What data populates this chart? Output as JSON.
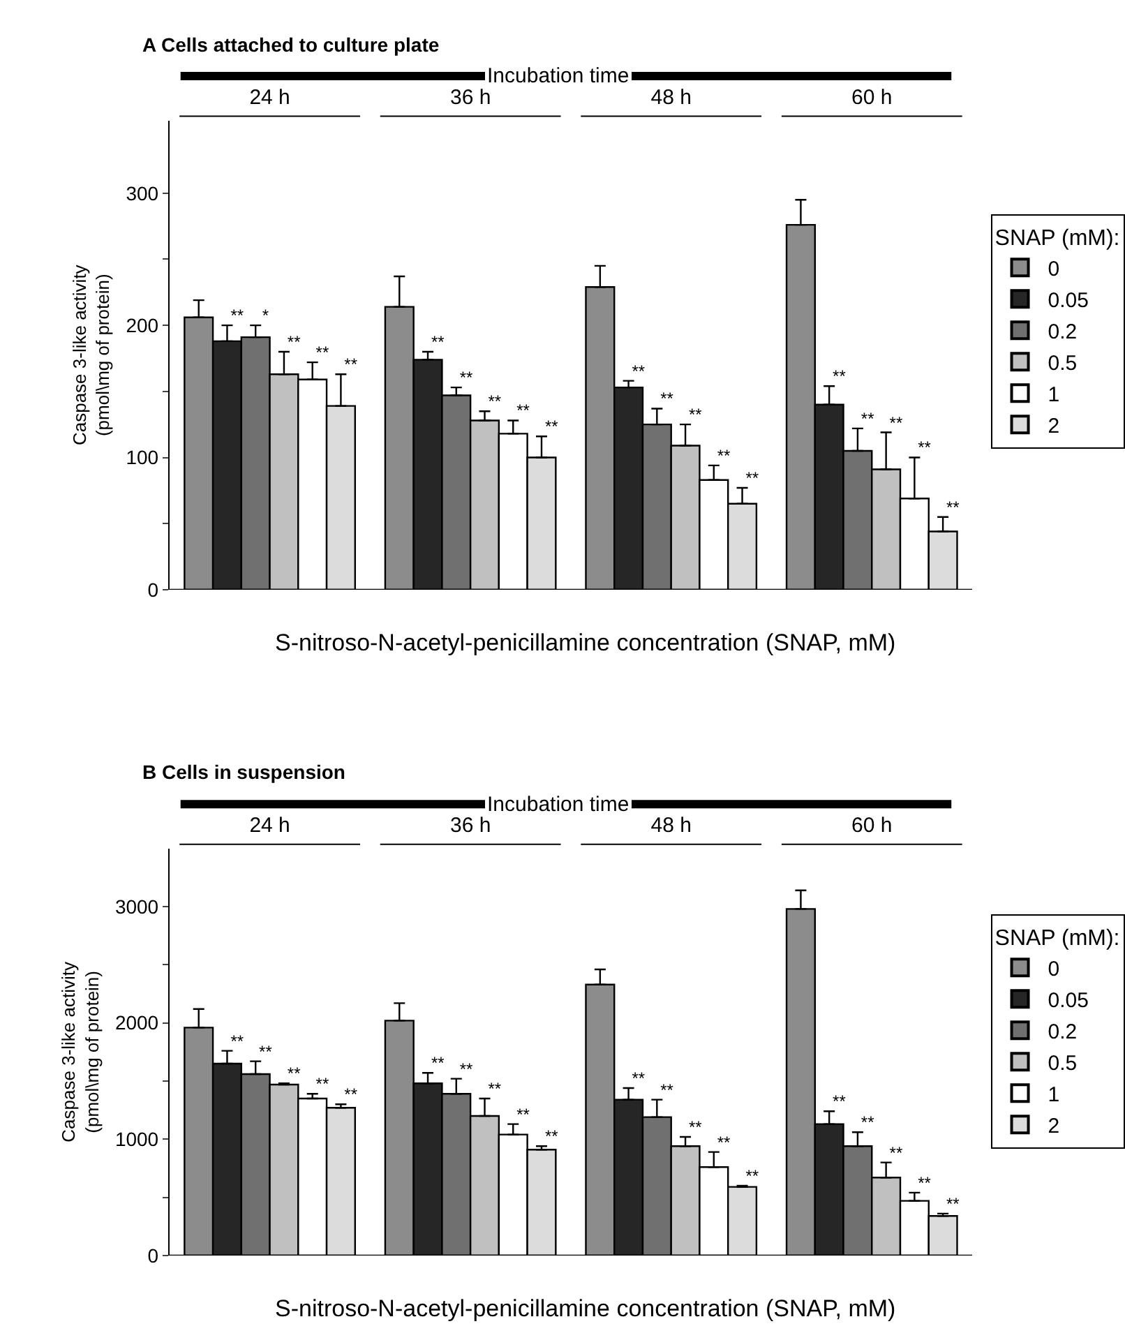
{
  "chart_data": [
    {
      "type": "bar",
      "title": "A Cells attached to culture plate",
      "xlabel": "S-nitroso-N-acetyl-penicillamine concentration (SNAP, mM)",
      "ylabel": "Caspase 3-like activity\n(pmol\\mg of protein)",
      "legend_title": "SNAP (mM):",
      "legend": "right",
      "annotations": [
        "Incubation time"
      ],
      "categories": [
        "24 h",
        "36 h",
        "48 h",
        "60 h"
      ],
      "ylim": [
        0,
        355
      ],
      "yticks": [
        0,
        {
          "value": 50,
          "label": null
        },
        100,
        {
          "value": 150,
          "label": null
        },
        200,
        {
          "value": 250,
          "label": null
        },
        300
      ],
      "series": [
        {
          "name": "0",
          "color": "#8c8c8c",
          "values": [
            206,
            214,
            229,
            276
          ],
          "errors": [
            [
              206,
              219
            ],
            [
              214,
              237
            ],
            [
              229,
              245
            ],
            [
              276,
              295
            ]
          ]
        },
        {
          "name": "0.05",
          "color": "#262626",
          "values": [
            188,
            174,
            153,
            140
          ],
          "errors": [
            [
              188,
              200
            ],
            [
              174,
              180
            ],
            [
              153,
              158
            ],
            [
              140,
              154
            ]
          ],
          "value_labels": [
            "**",
            "**",
            "**",
            "**"
          ]
        },
        {
          "name": "0.2",
          "color": "#707070",
          "values": [
            191,
            147,
            125,
            105
          ],
          "errors": [
            [
              191,
              200
            ],
            [
              147,
              153
            ],
            [
              125,
              137
            ],
            [
              105,
              122
            ]
          ],
          "value_labels": [
            "*",
            "**",
            "**",
            "**"
          ]
        },
        {
          "name": "0.5",
          "color": "#c0c0c0",
          "values": [
            163,
            128,
            109,
            91
          ],
          "errors": [
            [
              163,
              180
            ],
            [
              128,
              135
            ],
            [
              109,
              125
            ],
            [
              91,
              119
            ]
          ],
          "value_labels": [
            "**",
            "**",
            "**",
            "**"
          ]
        },
        {
          "name": "1",
          "color": "#ffffff",
          "values": [
            159,
            118,
            83,
            69
          ],
          "errors": [
            [
              159,
              172
            ],
            [
              118,
              128
            ],
            [
              83,
              94
            ],
            [
              69,
              100
            ]
          ],
          "value_labels": [
            "**",
            "**",
            "**",
            "**"
          ]
        },
        {
          "name": "2",
          "color": "#dcdcdc",
          "values": [
            139,
            100,
            65,
            44
          ],
          "errors": [
            [
              139,
              163
            ],
            [
              100,
              116
            ],
            [
              65,
              77
            ],
            [
              44,
              55
            ]
          ],
          "value_labels": [
            "**",
            "**",
            "**",
            "**"
          ]
        }
      ]
    },
    {
      "type": "bar",
      "title": "B Cells in suspension",
      "xlabel": "S-nitroso-N-acetyl-penicillamine concentration (SNAP, mM)",
      "ylabel": "Caspase 3-like activity\n(pmol\\mg of protein)",
      "legend_title": "SNAP (mM):",
      "legend": "right",
      "annotations": [
        "Incubation time"
      ],
      "categories": [
        "24 h",
        "36 h",
        "48 h",
        "60 h"
      ],
      "ylim": [
        0,
        3500
      ],
      "yticks": [
        0,
        {
          "value": 500,
          "label": null
        },
        1000,
        {
          "value": 1500,
          "label": null
        },
        2000,
        {
          "value": 2500,
          "label": null
        },
        3000
      ],
      "series": [
        {
          "name": "0",
          "color": "#8c8c8c",
          "values": [
            1960,
            2020,
            2330,
            2980
          ],
          "errors": [
            [
              1960,
              2120
            ],
            [
              2020,
              2170
            ],
            [
              2330,
              2460
            ],
            [
              2980,
              3140
            ]
          ]
        },
        {
          "name": "0.05",
          "color": "#262626",
          "values": [
            1650,
            1480,
            1340,
            1130
          ],
          "errors": [
            [
              1650,
              1760
            ],
            [
              1480,
              1570
            ],
            [
              1340,
              1440
            ],
            [
              1130,
              1240
            ]
          ],
          "value_labels": [
            "**",
            "**",
            "**",
            "**"
          ]
        },
        {
          "name": "0.2",
          "color": "#707070",
          "values": [
            1560,
            1390,
            1190,
            940
          ],
          "errors": [
            [
              1560,
              1670
            ],
            [
              1390,
              1520
            ],
            [
              1190,
              1340
            ],
            [
              940,
              1060
            ]
          ],
          "value_labels": [
            "**",
            "**",
            "**",
            "**"
          ]
        },
        {
          "name": "0.5",
          "color": "#c0c0c0",
          "values": [
            1470,
            1200,
            940,
            670
          ],
          "errors": [
            [
              1470,
              1480
            ],
            [
              1200,
              1350
            ],
            [
              940,
              1020
            ],
            [
              670,
              800
            ]
          ],
          "value_labels": [
            "**",
            "**",
            "**",
            "**"
          ]
        },
        {
          "name": "1",
          "color": "#ffffff",
          "values": [
            1350,
            1040,
            760,
            470
          ],
          "errors": [
            [
              1350,
              1390
            ],
            [
              1040,
              1130
            ],
            [
              760,
              890
            ],
            [
              470,
              540
            ]
          ],
          "value_labels": [
            "**",
            "**",
            "**",
            "**"
          ]
        },
        {
          "name": "2",
          "color": "#dcdcdc",
          "values": [
            1270,
            910,
            590,
            340
          ],
          "errors": [
            [
              1270,
              1300
            ],
            [
              910,
              940
            ],
            [
              590,
              600
            ],
            [
              340,
              360
            ]
          ],
          "value_labels": [
            "**",
            "**",
            "**",
            "**"
          ]
        }
      ]
    }
  ]
}
